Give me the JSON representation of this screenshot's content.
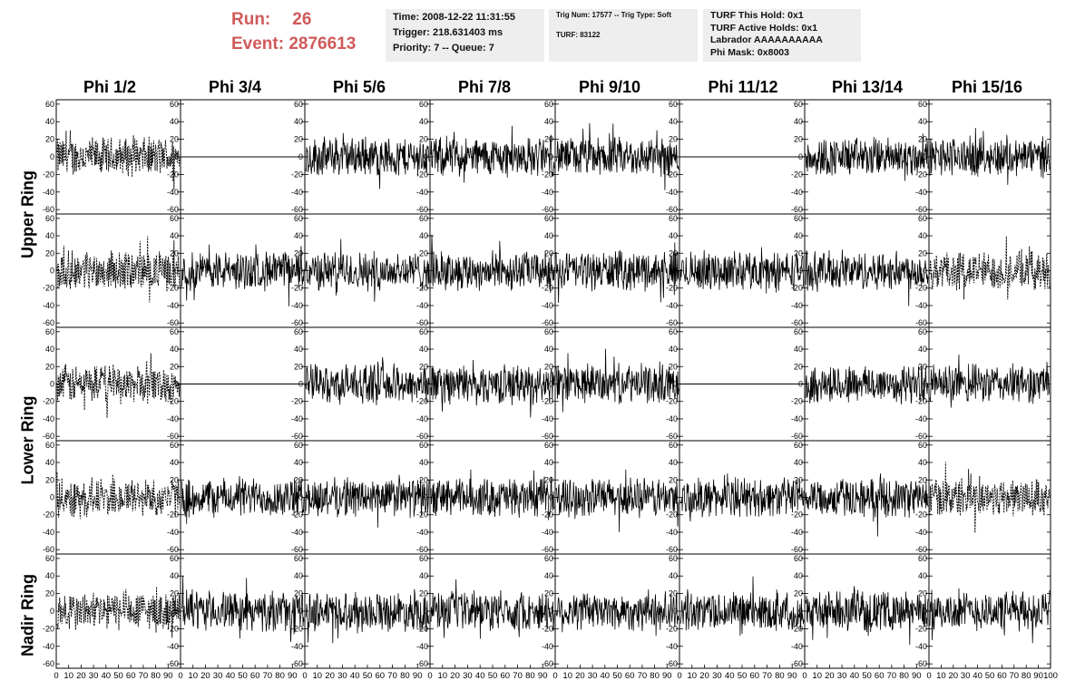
{
  "run": {
    "run_label": "Run:",
    "run_value": "26",
    "event_label": "Event:",
    "event_value": "2876613"
  },
  "info_boxes": {
    "time": [
      "Time: 2008-12-22 11:31:55",
      "Trigger: 218.631403 ms",
      "Priority: 7 -- Queue: 7"
    ],
    "trig": [
      "Trig Num: 17577 -- Trig Type: Soft",
      "TURF: 83122"
    ],
    "turf": [
      "TURF This Hold: 0x1",
      "TURF Active Holds: 0x1",
      "Labrador AAAAAAAAAA",
      "Phi Mask: 0x8003"
    ]
  },
  "columns": [
    "Phi 1/2",
    "Phi 3/4",
    "Phi 5/6",
    "Phi 7/8",
    "Phi 9/10",
    "Phi 11/12",
    "Phi 13/14",
    "Phi 15/16"
  ],
  "rows": [
    "Upper Ring",
    "Lower Ring",
    "Nadir Ring"
  ],
  "chart_data": {
    "type": "line",
    "panel_rows": 5,
    "panel_cols": 8,
    "ylim": [
      -65,
      65
    ],
    "xlim": [
      0,
      100
    ],
    "y_ticks": [
      60,
      40,
      20,
      0,
      -20,
      -40,
      -60
    ],
    "x_ticks": [
      0,
      10,
      20,
      30,
      40,
      50,
      60,
      70,
      80,
      90,
      100
    ],
    "flat_panels": [
      [
        0,
        1
      ],
      [
        0,
        5
      ],
      [
        2,
        1
      ],
      [
        2,
        5
      ]
    ],
    "dashed_panels": [
      [
        0,
        0
      ],
      [
        1,
        0
      ],
      [
        1,
        7
      ],
      [
        2,
        0
      ],
      [
        3,
        0
      ],
      [
        3,
        7
      ],
      [
        4,
        0
      ]
    ],
    "waveform_amplitude_approx": 25
  }
}
